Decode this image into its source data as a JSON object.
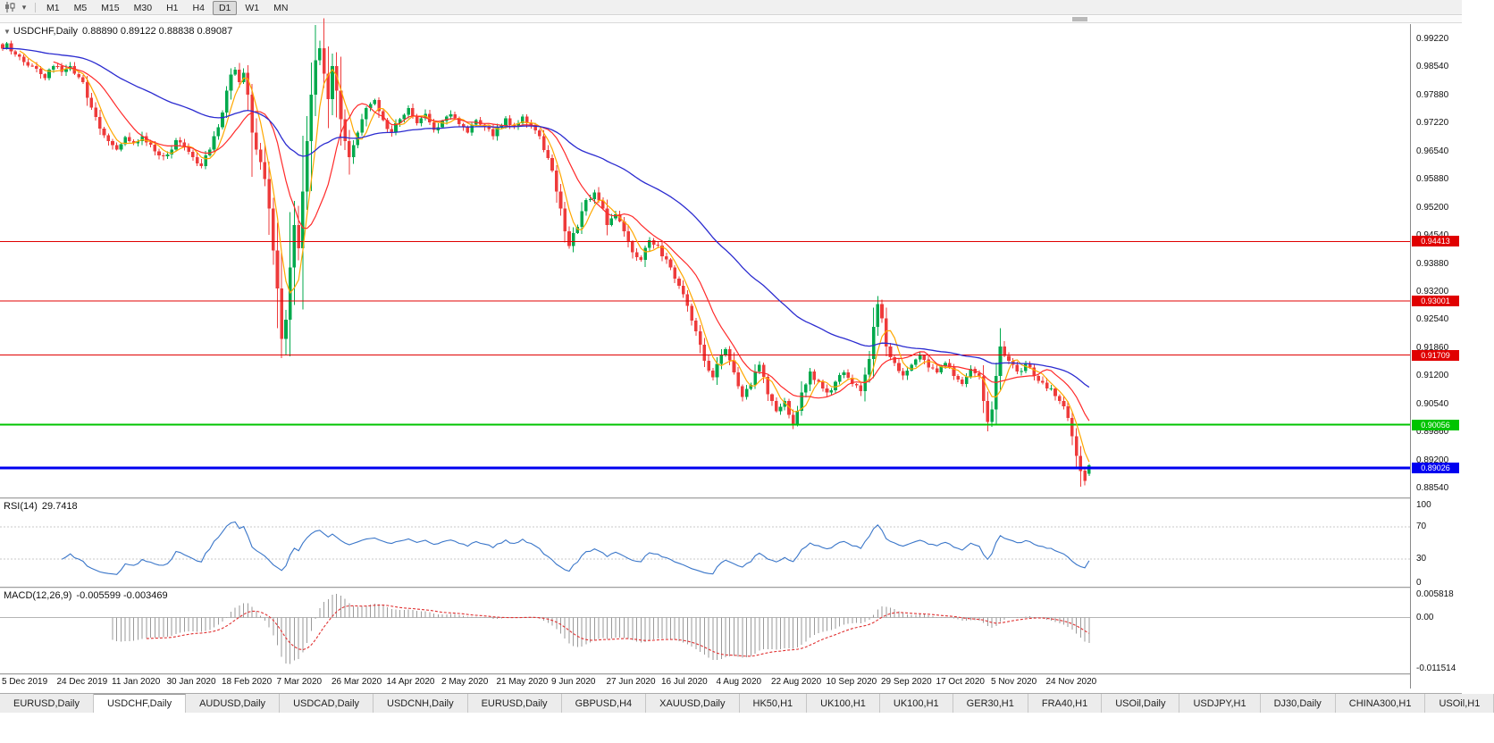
{
  "toolbar": {
    "timeframes": [
      "M1",
      "M5",
      "M15",
      "M30",
      "H1",
      "H4",
      "D1",
      "W1",
      "MN"
    ],
    "active_timeframe": "D1"
  },
  "icons": {
    "chart_type": "candlestick-chart-icon",
    "dropdown": "dropdown-icon",
    "symbol_marker": "symbol-dropdown-icon"
  },
  "chart": {
    "title": "USDCHF,Daily",
    "ohlc": "0.88890 0.89122 0.88838 0.89087"
  },
  "chart_data": {
    "type": "candlestick",
    "symbol": "USDCHF",
    "period": "Daily",
    "bars": 258,
    "last_bar": {
      "open": 0.8889,
      "high": 0.89122,
      "low": 0.88838,
      "close": 0.89087
    },
    "y_axis_ticks": [
      "0.99220",
      "0.98540",
      "0.97880",
      "0.97220",
      "0.96540",
      "0.95880",
      "0.95200",
      "0.94540",
      "0.93880",
      "0.93200",
      "0.92540",
      "0.91860",
      "0.91200",
      "0.90540",
      "0.89860",
      "0.89200",
      "0.88540"
    ],
    "x_axis_dates": [
      "5 Dec 2019",
      "24 Dec 2019",
      "11 Jan 2020",
      "30 Jan 2020",
      "18 Feb 2020",
      "7 Mar 2020",
      "26 Mar 2020",
      "14 Apr 2020",
      "2 May 2020",
      "21 May 2020",
      "9 Jun 2020",
      "27 Jun 2020",
      "16 Jul 2020",
      "4 Aug 2020",
      "22 Aug 2020",
      "10 Sep 2020",
      "29 Sep 2020",
      "17 Oct 2020",
      "5 Nov 2020",
      "24 Nov 2020"
    ],
    "hlines": [
      {
        "label": "0.94413",
        "value": 0.94413,
        "color": "#e00000",
        "width": 1
      },
      {
        "label": "0.93001",
        "value": 0.93001,
        "color": "#e00000",
        "width": 1
      },
      {
        "label": "0.91709",
        "value": 0.91709,
        "color": "#e00000",
        "width": 1
      },
      {
        "label": "0.90056",
        "value": 0.90056,
        "color": "#00c400",
        "width": 2
      },
      {
        "label": "0.89026",
        "value": 0.89026,
        "color": "#0000f0",
        "width": 3
      }
    ],
    "colors": {
      "up": "#00a94c",
      "down": "#ee3b3b",
      "ma_fast": "#ffa800",
      "ma_medium": "#ff2a2a",
      "ma_slow": "#2b2bd0"
    },
    "moving_averages": [
      {
        "name": "fast",
        "period": 5,
        "color": "#ffa800"
      },
      {
        "name": "medium",
        "period": 13,
        "color": "#ff2a2a"
      },
      {
        "name": "slow",
        "period": 55,
        "color": "#2b2bd0"
      }
    ],
    "close_anchors": [
      [
        0,
        0.99
      ],
      [
        1,
        0.9912
      ],
      [
        3,
        0.9886
      ],
      [
        5,
        0.9868
      ],
      [
        8,
        0.9852
      ],
      [
        10,
        0.983
      ],
      [
        12,
        0.9858
      ],
      [
        14,
        0.9845
      ],
      [
        16,
        0.9858
      ],
      [
        19,
        0.982
      ],
      [
        21,
        0.976
      ],
      [
        23,
        0.971
      ],
      [
        25,
        0.968
      ],
      [
        27,
        0.966
      ],
      [
        29,
        0.969
      ],
      [
        31,
        0.9675
      ],
      [
        33,
        0.9692
      ],
      [
        36,
        0.9656
      ],
      [
        39,
        0.9648
      ],
      [
        41,
        0.9682
      ],
      [
        43,
        0.9665
      ],
      [
        45,
        0.9642
      ],
      [
        47,
        0.962
      ],
      [
        49,
        0.966
      ],
      [
        50,
        0.9692
      ],
      [
        52,
        0.9748
      ],
      [
        53,
        0.98
      ],
      [
        54,
        0.9838
      ],
      [
        55,
        0.985
      ],
      [
        56,
        0.982
      ],
      [
        57,
        0.9842
      ],
      [
        58,
        0.979
      ],
      [
        59,
        0.97
      ],
      [
        60,
        0.966
      ],
      [
        61,
        0.963
      ],
      [
        62,
        0.959
      ],
      [
        63,
        0.952
      ],
      [
        64,
        0.942
      ],
      [
        65,
        0.933
      ],
      [
        66,
        0.921
      ],
      [
        67,
        0.9255
      ],
      [
        68,
        0.938
      ],
      [
        69,
        0.948
      ],
      [
        70,
        0.9425
      ],
      [
        71,
        0.956
      ],
      [
        72,
        0.968
      ],
      [
        73,
        0.979
      ],
      [
        74,
        0.9872
      ],
      [
        75,
        0.9901
      ],
      [
        76,
        0.984
      ],
      [
        77,
        0.978
      ],
      [
        78,
        0.9858
      ],
      [
        79,
        0.98
      ],
      [
        80,
        0.9732
      ],
      [
        81,
        0.968
      ],
      [
        82,
        0.9642
      ],
      [
        84,
        0.97
      ],
      [
        86,
        0.9758
      ],
      [
        88,
        0.9778
      ],
      [
        90,
        0.973
      ],
      [
        92,
        0.97
      ],
      [
        94,
        0.9732
      ],
      [
        96,
        0.9758
      ],
      [
        98,
        0.9722
      ],
      [
        100,
        0.9745
      ],
      [
        102,
        0.9706
      ],
      [
        104,
        0.9728
      ],
      [
        106,
        0.9744
      ],
      [
        108,
        0.972
      ],
      [
        110,
        0.97
      ],
      [
        112,
        0.973
      ],
      [
        114,
        0.9714
      ],
      [
        116,
        0.9692
      ],
      [
        117,
        0.9712
      ],
      [
        119,
        0.9734
      ],
      [
        121,
        0.9716
      ],
      [
        123,
        0.9738
      ],
      [
        125,
        0.9718
      ],
      [
        127,
        0.9692
      ],
      [
        129,
        0.964
      ],
      [
        130,
        0.961
      ],
      [
        131,
        0.956
      ],
      [
        132,
        0.952
      ],
      [
        133,
        0.9465
      ],
      [
        134,
        0.943
      ],
      [
        136,
        0.9476
      ],
      [
        138,
        0.954
      ],
      [
        140,
        0.9558
      ],
      [
        142,
        0.952
      ],
      [
        143,
        0.948
      ],
      [
        145,
        0.9506
      ],
      [
        147,
        0.9466
      ],
      [
        149,
        0.9416
      ],
      [
        151,
        0.9398
      ],
      [
        153,
        0.9444
      ],
      [
        155,
        0.9432
      ],
      [
        156,
        0.9406
      ],
      [
        158,
        0.938
      ],
      [
        160,
        0.9336
      ],
      [
        162,
        0.9288
      ],
      [
        164,
        0.9228
      ],
      [
        166,
        0.9158
      ],
      [
        168,
        0.9118
      ],
      [
        169,
        0.915
      ],
      [
        171,
        0.9185
      ],
      [
        173,
        0.913
      ],
      [
        175,
        0.9072
      ],
      [
        177,
        0.91
      ],
      [
        179,
        0.9148
      ],
      [
        181,
        0.9078
      ],
      [
        183,
        0.9038
      ],
      [
        185,
        0.9062
      ],
      [
        187,
        0.9008
      ],
      [
        189,
        0.9082
      ],
      [
        191,
        0.9132
      ],
      [
        193,
        0.9108
      ],
      [
        195,
        0.9082
      ],
      [
        197,
        0.9108
      ],
      [
        199,
        0.913
      ],
      [
        201,
        0.9102
      ],
      [
        203,
        0.9085
      ],
      [
        205,
        0.9162
      ],
      [
        206,
        0.9238
      ],
      [
        207,
        0.9292
      ],
      [
        208,
        0.9258
      ],
      [
        209,
        0.9192
      ],
      [
        211,
        0.9152
      ],
      [
        213,
        0.9122
      ],
      [
        215,
        0.9148
      ],
      [
        217,
        0.917
      ],
      [
        219,
        0.9142
      ],
      [
        221,
        0.913
      ],
      [
        223,
        0.9152
      ],
      [
        225,
        0.9122
      ],
      [
        227,
        0.9102
      ],
      [
        229,
        0.9138
      ],
      [
        231,
        0.912
      ],
      [
        232,
        0.9062
      ],
      [
        233,
        0.9012
      ],
      [
        234,
        0.9042
      ],
      [
        235,
        0.9122
      ],
      [
        236,
        0.9192
      ],
      [
        238,
        0.9158
      ],
      [
        240,
        0.9132
      ],
      [
        242,
        0.915
      ],
      [
        244,
        0.9122
      ],
      [
        246,
        0.9106
      ],
      [
        248,
        0.9092
      ],
      [
        250,
        0.9062
      ],
      [
        252,
        0.9022
      ],
      [
        253,
        0.8978
      ],
      [
        254,
        0.8932
      ],
      [
        255,
        0.8896
      ],
      [
        256,
        0.8872
      ],
      [
        257,
        0.89087
      ]
    ],
    "forced_extremes": [
      [
        66,
        "low",
        0.9172
      ],
      [
        75,
        "high",
        0.9905
      ],
      [
        187,
        "low",
        0.8999
      ],
      [
        207,
        "high",
        0.9312
      ],
      [
        233,
        "low",
        0.8994
      ],
      [
        255,
        "low",
        0.8858
      ]
    ]
  },
  "rsi_panel": {
    "label": "RSI(14)",
    "value": "29.7418",
    "period": 14,
    "line_color": "#3a76c9",
    "level_lines": [
      70,
      30
    ],
    "axis_labels": [
      {
        "text": "100",
        "value": 100
      },
      {
        "text": "70",
        "value": 70
      },
      {
        "text": "30",
        "value": 30
      },
      {
        "text": "0",
        "value": 0
      }
    ]
  },
  "macd_panel": {
    "label": "MACD(12,26,9)",
    "values": "-0.005599 -0.003469",
    "fast": 12,
    "slow": 26,
    "signal": 9,
    "histogram_color": "#9a9a9a",
    "signal_color": "#e03030",
    "axis_labels": [
      {
        "text": "0.005818",
        "value": 0.005818
      },
      {
        "text": "0.00",
        "value": 0
      },
      {
        "text": "-0.011514",
        "value": -0.011514
      }
    ]
  },
  "tabs": {
    "active_index": 1,
    "items": [
      "EURUSD,Daily",
      "USDCHF,Daily",
      "AUDUSD,Daily",
      "USDCAD,Daily",
      "USDCNH,Daily",
      "EURUSD,Daily",
      "GBPUSD,H4",
      "XAUUSD,Daily",
      "HK50,H1",
      "UK100,H1",
      "UK100,H1",
      "GER30,H1",
      "FRA40,H1",
      "USOil,Daily",
      "USDJPY,H1",
      "DJ30,Daily",
      "CHINA300,H1",
      "USOil,H1"
    ]
  }
}
